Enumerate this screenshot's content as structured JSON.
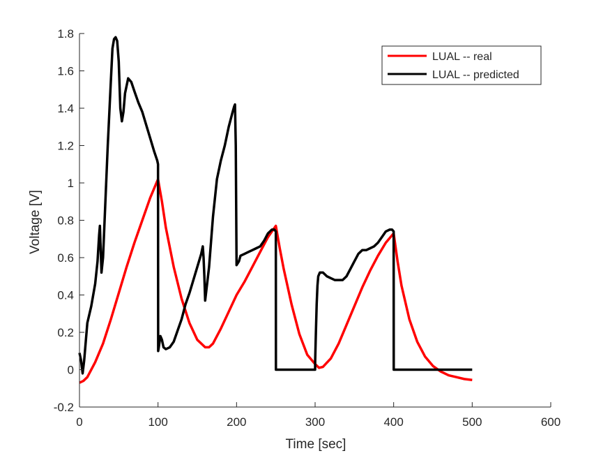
{
  "chart_data": {
    "type": "line",
    "xlabel": "Time [sec]",
    "ylabel": "Voltage [V]",
    "xlim": [
      0,
      600
    ],
    "ylim": [
      -0.2,
      1.8
    ],
    "xticks": [
      0,
      100,
      200,
      300,
      400,
      500,
      600
    ],
    "xtick_labels": [
      "0",
      "100",
      "200",
      "300",
      "400",
      "500",
      "600"
    ],
    "yticks": [
      -0.2,
      0,
      0.2,
      0.4,
      0.6,
      0.8,
      1.0,
      1.2,
      1.4,
      1.6,
      1.8
    ],
    "ytick_labels": [
      "-0.2",
      "0",
      "0.2",
      "0.4",
      "0.6",
      "0.8",
      "1",
      "1.2",
      "1.4",
      "1.6",
      "1.8"
    ],
    "grid": false,
    "legend_position": "top-right",
    "series": [
      {
        "name": "LUAL -- real",
        "color": "#ff0000",
        "x": [
          0,
          5,
          10,
          20,
          30,
          40,
          50,
          60,
          70,
          80,
          90,
          100,
          105,
          110,
          120,
          130,
          140,
          150,
          160,
          165,
          170,
          180,
          190,
          200,
          210,
          220,
          230,
          240,
          250,
          255,
          260,
          270,
          280,
          290,
          300,
          305,
          310,
          320,
          330,
          340,
          350,
          360,
          370,
          380,
          390,
          400,
          405,
          410,
          420,
          430,
          440,
          450,
          460,
          470,
          480,
          490,
          500
        ],
        "y": [
          -0.07,
          -0.06,
          -0.04,
          0.04,
          0.14,
          0.27,
          0.41,
          0.55,
          0.68,
          0.8,
          0.92,
          1.02,
          0.9,
          0.76,
          0.55,
          0.38,
          0.25,
          0.16,
          0.12,
          0.12,
          0.14,
          0.22,
          0.31,
          0.4,
          0.47,
          0.55,
          0.63,
          0.71,
          0.77,
          0.65,
          0.54,
          0.35,
          0.19,
          0.08,
          0.03,
          0.01,
          0.015,
          0.06,
          0.14,
          0.24,
          0.34,
          0.44,
          0.53,
          0.61,
          0.68,
          0.73,
          0.58,
          0.45,
          0.27,
          0.15,
          0.07,
          0.02,
          -0.01,
          -0.03,
          -0.04,
          -0.05,
          -0.055
        ]
      },
      {
        "name": "LUAL -- predicted",
        "color": "#000000",
        "x": [
          0,
          2,
          4,
          6,
          8,
          10,
          15,
          20,
          23,
          25,
          26,
          27,
          28,
          30,
          33,
          36,
          40,
          42,
          44,
          46,
          48,
          50,
          52,
          54,
          56,
          58,
          62,
          66,
          70,
          75,
          80,
          85,
          90,
          95,
          99,
          100,
          100.2,
          101,
          103,
          105,
          107,
          110,
          115,
          120,
          125,
          130,
          135,
          140,
          145,
          150,
          155,
          157,
          158,
          159,
          160,
          165,
          170,
          175,
          180,
          185,
          190,
          195,
          197,
          198,
          199,
          200,
          203,
          205,
          210,
          215,
          220,
          225,
          230,
          235,
          240,
          245,
          248,
          250,
          250.1,
          255,
          260,
          270,
          280,
          290,
          300,
          300.1,
          301,
          302,
          303,
          304,
          306,
          308,
          310,
          315,
          320,
          325,
          330,
          335,
          340,
          345,
          350,
          355,
          360,
          365,
          370,
          375,
          380,
          385,
          390,
          395,
          398,
          400,
          400.1,
          405,
          410,
          420,
          430,
          440,
          450,
          460,
          470,
          480,
          490,
          500
        ],
        "y": [
          0.09,
          0.05,
          -0.02,
          0.05,
          0.15,
          0.25,
          0.34,
          0.46,
          0.58,
          0.72,
          0.77,
          0.65,
          0.52,
          0.6,
          0.9,
          1.2,
          1.55,
          1.72,
          1.77,
          1.78,
          1.76,
          1.65,
          1.4,
          1.33,
          1.38,
          1.48,
          1.56,
          1.54,
          1.49,
          1.43,
          1.38,
          1.31,
          1.24,
          1.17,
          1.12,
          1.1,
          0.1,
          0.12,
          0.18,
          0.16,
          0.12,
          0.11,
          0.12,
          0.15,
          0.21,
          0.27,
          0.35,
          0.41,
          0.48,
          0.55,
          0.62,
          0.66,
          0.6,
          0.5,
          0.37,
          0.55,
          0.82,
          1.02,
          1.12,
          1.2,
          1.3,
          1.38,
          1.41,
          1.42,
          1.2,
          0.56,
          0.58,
          0.61,
          0.62,
          0.63,
          0.64,
          0.65,
          0.66,
          0.69,
          0.73,
          0.75,
          0.75,
          0.74,
          0.0,
          0.0,
          0.0,
          0.0,
          0.0,
          0.0,
          0.0,
          0.05,
          0.2,
          0.35,
          0.45,
          0.5,
          0.52,
          0.52,
          0.52,
          0.5,
          0.49,
          0.48,
          0.48,
          0.48,
          0.5,
          0.54,
          0.58,
          0.62,
          0.64,
          0.64,
          0.65,
          0.66,
          0.68,
          0.71,
          0.74,
          0.75,
          0.75,
          0.74,
          0.0,
          0.0,
          0.0,
          0.0,
          0.0,
          0.0,
          0.0,
          0.0,
          0.0,
          0.0,
          0.0,
          0.0
        ]
      }
    ]
  }
}
